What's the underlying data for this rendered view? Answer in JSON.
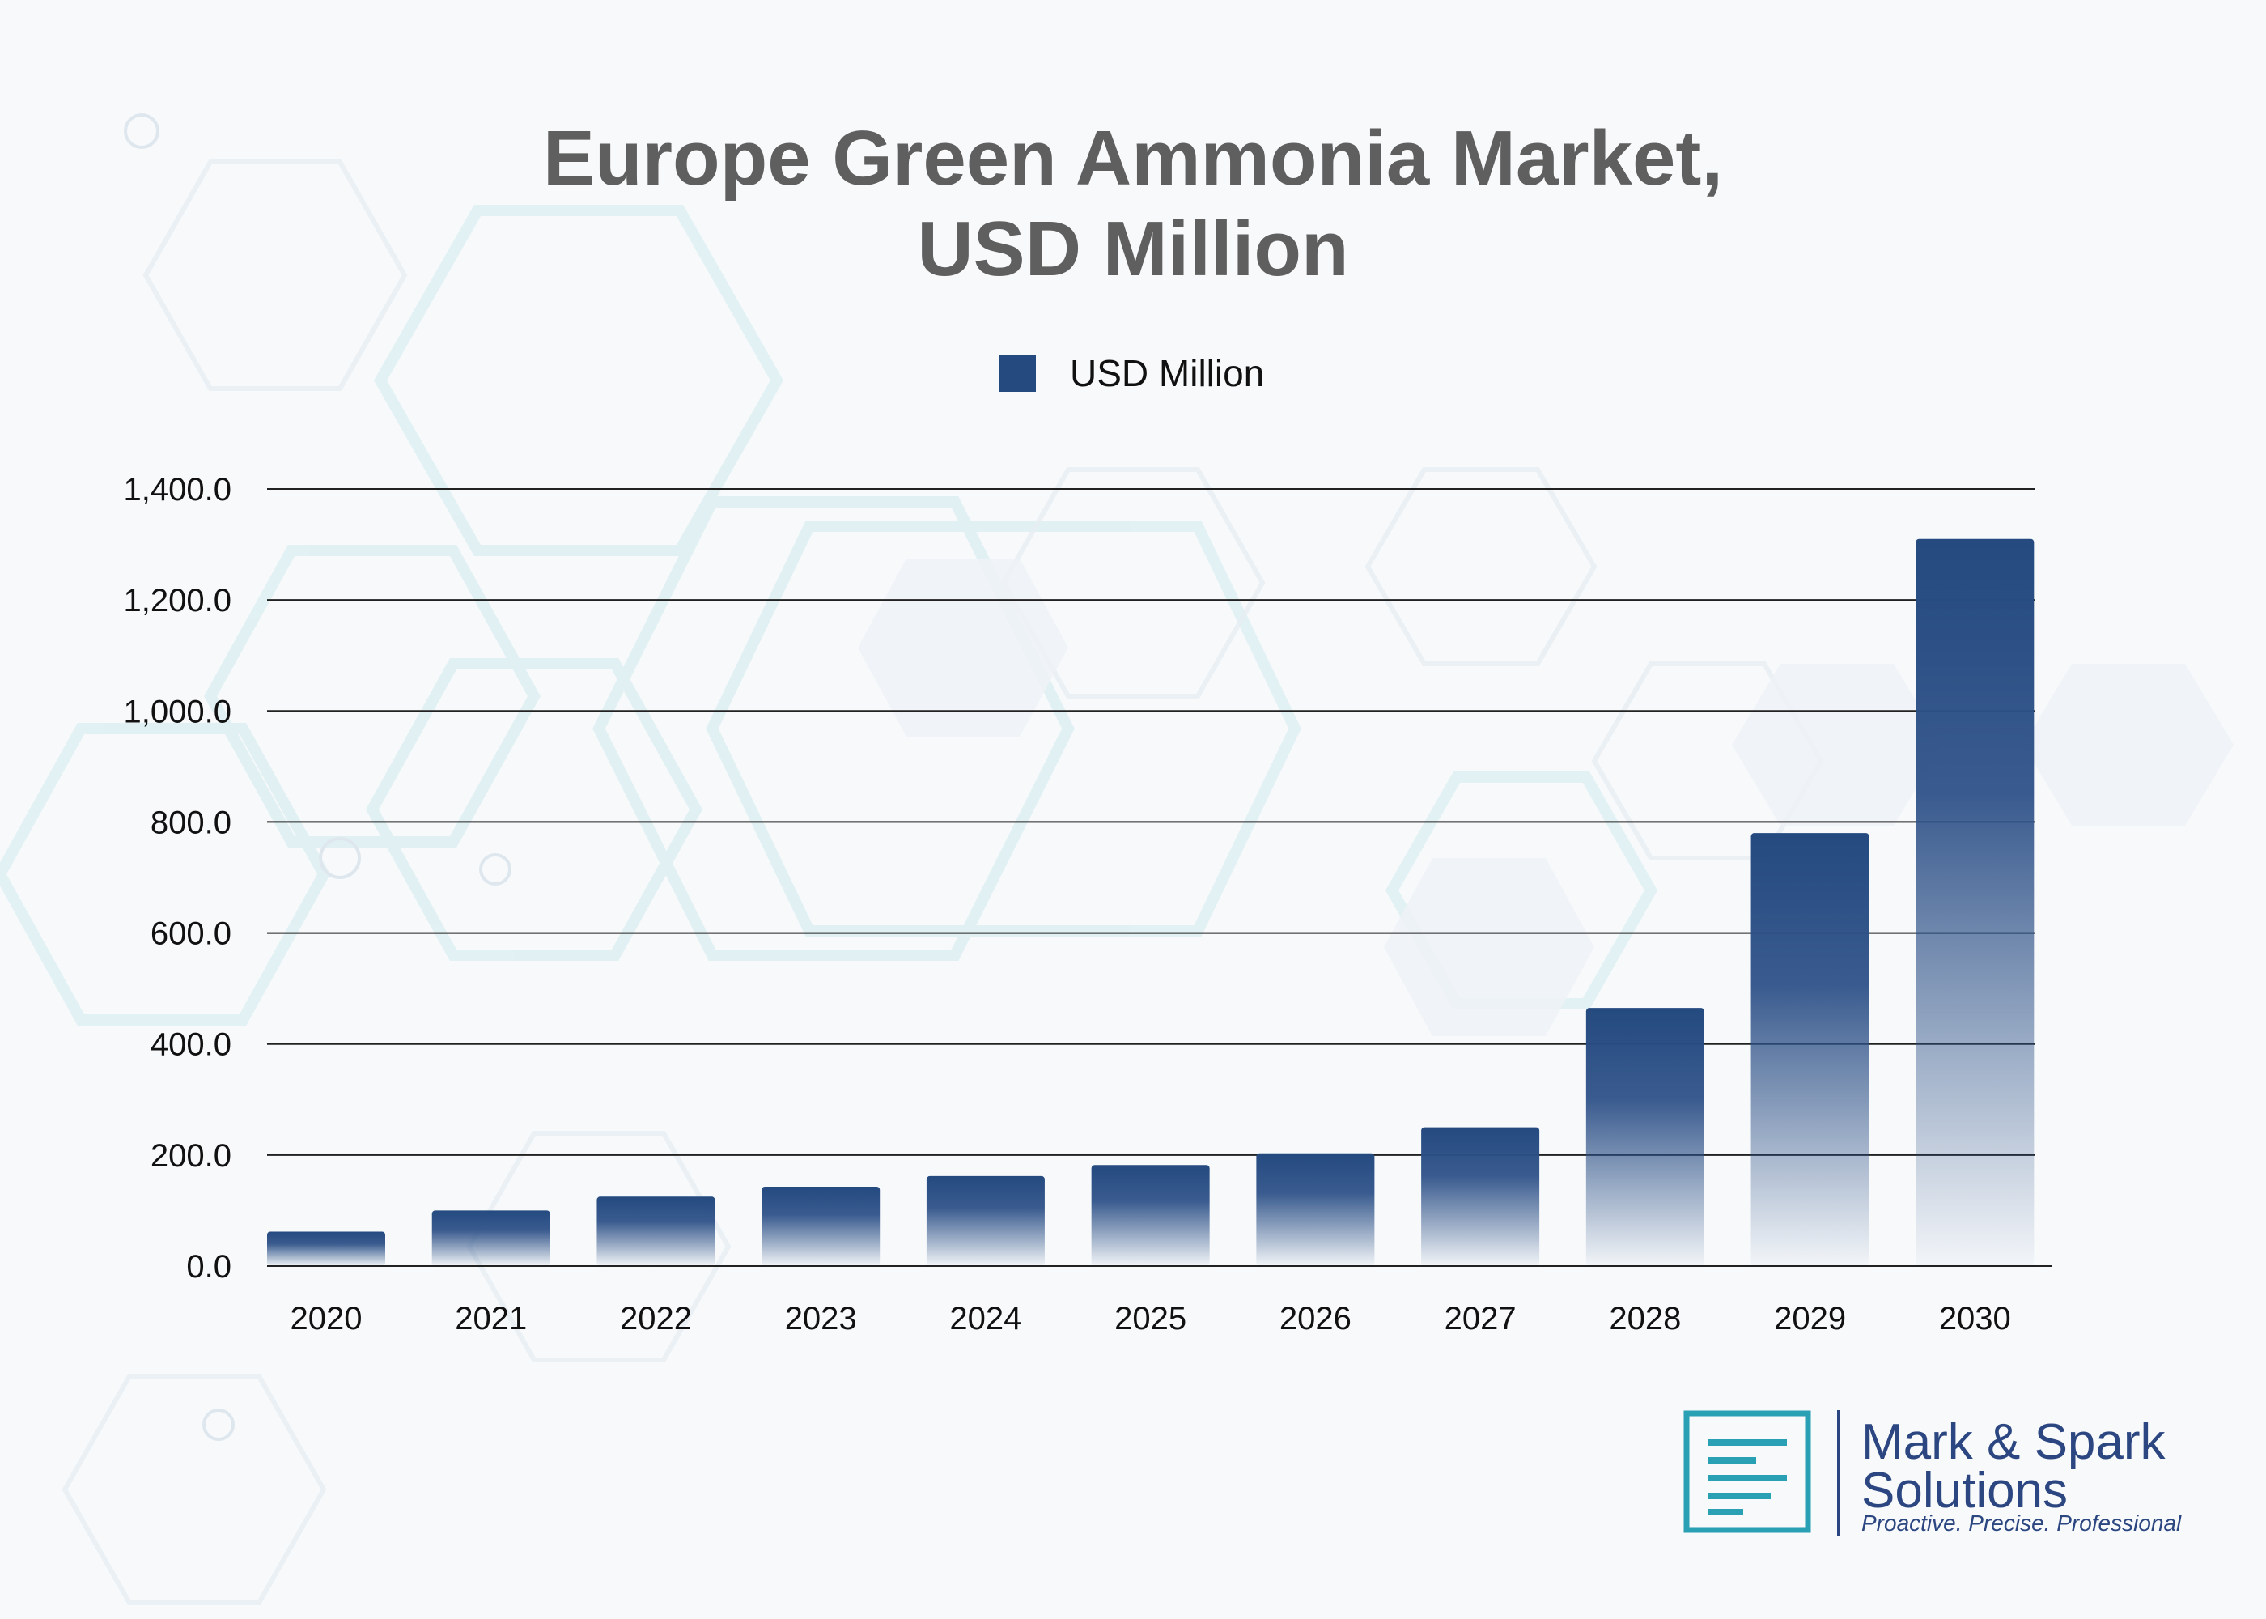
{
  "chart_data": {
    "type": "bar",
    "title": "Europe Green Ammonia Market, USD Million",
    "title_lines": [
      "Europe Green Ammonia Market,",
      "USD Million"
    ],
    "categories": [
      "2020",
      "2021",
      "2022",
      "2023",
      "2024",
      "2025",
      "2026",
      "2027",
      "2028",
      "2029",
      "2030"
    ],
    "series": [
      {
        "name": "USD Million",
        "values": [
          62,
          100,
          125,
          143,
          162,
          182,
          203,
          250,
          465,
          780,
          1310
        ]
      }
    ],
    "ylim": [
      0,
      1400
    ],
    "yticks": [
      "0.0",
      "200.0",
      "400.0",
      "600.0",
      "800.0",
      "1,000.0",
      "1,200.0",
      "1,400.0"
    ],
    "ytick_values": [
      0,
      200,
      400,
      600,
      800,
      1000,
      1200,
      1400
    ],
    "xlabel": "",
    "ylabel": "",
    "grid": true,
    "legend_position": "top-center",
    "colors": {
      "bar": "#244a80",
      "grid": "#222222",
      "title": "#5f5f5f"
    }
  },
  "brand": {
    "name_line1": "Mark & Spark",
    "name_line2": "Solutions",
    "tagline": "Proactive. Precise. Professional",
    "logo_icon": "document-lines-icon",
    "logo_color": "#2aa0b4"
  }
}
